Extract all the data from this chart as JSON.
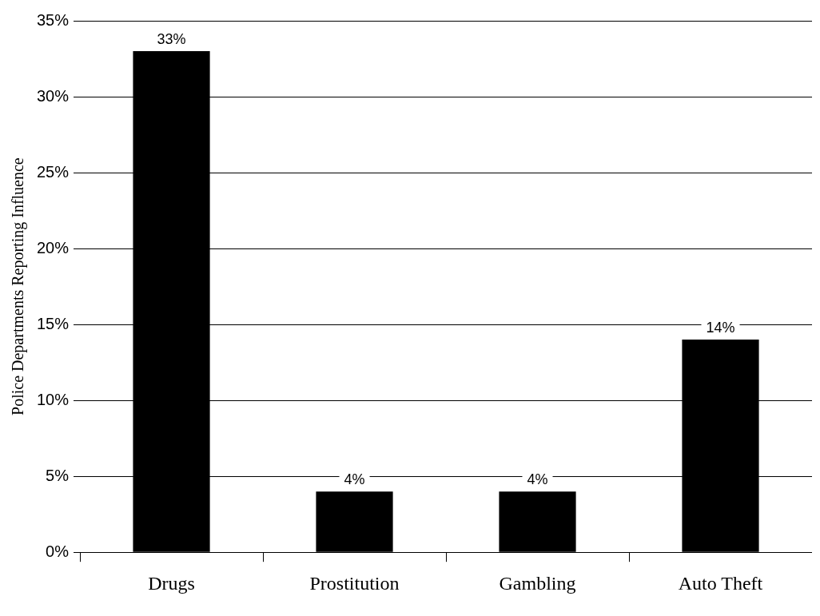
{
  "chart_data": {
    "type": "bar",
    "ylabel": "Police Departments Reporting Influence",
    "categories": [
      "Drugs",
      "Prostitution",
      "Gambling",
      "Auto Theft"
    ],
    "values": [
      33,
      4,
      4,
      14
    ],
    "value_labels": [
      "33%",
      "4%",
      "4%",
      "14%"
    ],
    "color": "#000000",
    "ylim": [
      0,
      35
    ],
    "yticks": [
      {
        "value": 0,
        "label": "0%"
      },
      {
        "value": 5,
        "label": "5%"
      },
      {
        "value": 10,
        "label": "10%"
      },
      {
        "value": 15,
        "label": "15%"
      },
      {
        "value": 20,
        "label": "20%"
      },
      {
        "value": 25,
        "label": "25%"
      },
      {
        "value": 30,
        "label": "30%"
      },
      {
        "value": 35,
        "label": "35%"
      }
    ],
    "grid": "y",
    "legend": false
  }
}
